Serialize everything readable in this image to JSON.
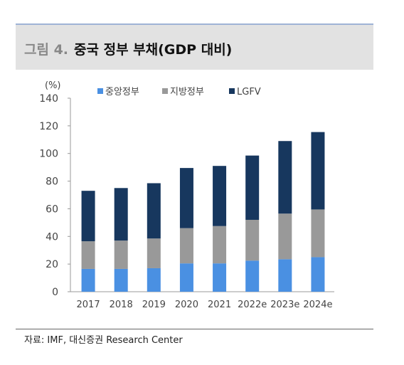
{
  "header": {
    "figure_label": "그림 4.",
    "title": "중국 정부 부채(GDP 대비)"
  },
  "source": "자료: IMF, 대신증권 Research Center",
  "colors": {
    "central": "#4a90e2",
    "local": "#999999",
    "lgfv": "#17375e"
  },
  "chart_data": {
    "type": "bar",
    "stacked": true,
    "title": "중국 정부 부채(GDP 대비)",
    "ylabel": "(%)",
    "xlabel": "",
    "ylim": [
      0,
      140
    ],
    "yticks": [
      0,
      20,
      40,
      60,
      80,
      100,
      120,
      140
    ],
    "grid": false,
    "legend_position": "top",
    "categories": [
      "2017",
      "2018",
      "2019",
      "2020",
      "2021",
      "2022e",
      "2023e",
      "2024e"
    ],
    "series": [
      {
        "name": "중앙정부",
        "values": [
          16.5,
          16.5,
          17.0,
          20.5,
          20.5,
          22.5,
          23.5,
          25.0
        ]
      },
      {
        "name": "지방정부",
        "values": [
          20.0,
          20.5,
          21.5,
          25.5,
          27.0,
          29.5,
          33.0,
          34.5
        ]
      },
      {
        "name": "LGFV",
        "values": [
          36.5,
          38.0,
          40.0,
          43.5,
          43.5,
          46.5,
          52.5,
          56.0
        ]
      }
    ]
  }
}
